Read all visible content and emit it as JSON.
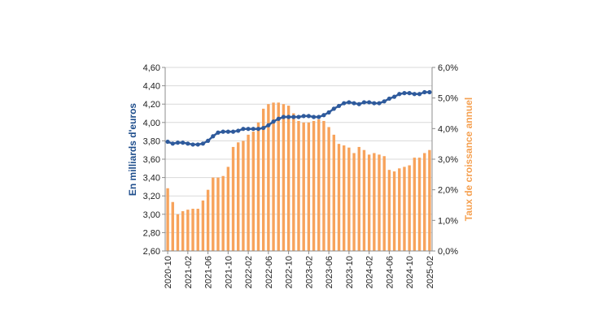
{
  "chart_data": {
    "type": "bar+line",
    "title": "",
    "x_label": "",
    "y_left_label": "En milliards d'euros",
    "y_right_label": "Taux de croissance annuel",
    "y_left_range": [
      2.6,
      4.6
    ],
    "y_right_range": [
      0,
      6
    ],
    "y_left_ticks": [
      "2,60",
      "2,80",
      "3,00",
      "3,20",
      "3,40",
      "3,60",
      "3,80",
      "4,00",
      "4,20",
      "4,40",
      "4,60"
    ],
    "y_right_ticks": [
      "0,0%",
      "1,0%",
      "2,0%",
      "3,0%",
      "4,0%",
      "5,0%",
      "6,0%"
    ],
    "x_ticks": [
      "2020-10",
      "2021-02",
      "2021-06",
      "2021-10",
      "2022-02",
      "2022-06",
      "2022-10",
      "2023-02",
      "2023-06",
      "2023-10",
      "2024-02",
      "2024-06",
      "2024-10",
      "2025-02"
    ],
    "grid": true,
    "colors": {
      "line": "#2e5a9c",
      "bars": "#f7a35c",
      "axis": "#8c8c8c",
      "grid": "#d9d9d9",
      "left_label": "#1f4e8c",
      "right_label": "#f5a050"
    },
    "months": [
      "2020-10",
      "2020-11",
      "2020-12",
      "2021-01",
      "2021-02",
      "2021-03",
      "2021-04",
      "2021-05",
      "2021-06",
      "2021-07",
      "2021-08",
      "2021-09",
      "2021-10",
      "2021-11",
      "2021-12",
      "2022-01",
      "2022-02",
      "2022-03",
      "2022-04",
      "2022-05",
      "2022-06",
      "2022-07",
      "2022-08",
      "2022-09",
      "2022-10",
      "2022-11",
      "2022-12",
      "2023-01",
      "2023-02",
      "2023-03",
      "2023-04",
      "2023-05",
      "2023-06",
      "2023-07",
      "2023-08",
      "2023-09",
      "2023-10",
      "2023-11",
      "2023-12",
      "2024-01",
      "2024-02",
      "2024-03",
      "2024-04",
      "2024-05",
      "2024-06",
      "2024-07",
      "2024-08",
      "2024-09",
      "2024-10",
      "2024-11",
      "2024-12",
      "2025-01",
      "2025-02"
    ],
    "series": [
      {
        "axis": "left",
        "type": "line",
        "values": [
          3.79,
          3.77,
          3.78,
          3.78,
          3.77,
          3.76,
          3.76,
          3.77,
          3.8,
          3.85,
          3.89,
          3.9,
          3.9,
          3.9,
          3.91,
          3.93,
          3.93,
          3.93,
          3.93,
          3.94,
          3.97,
          4.01,
          4.04,
          4.06,
          4.06,
          4.06,
          4.06,
          4.07,
          4.07,
          4.06,
          4.06,
          4.08,
          4.11,
          4.15,
          4.18,
          4.21,
          4.22,
          4.21,
          4.2,
          4.22,
          4.22,
          4.21,
          4.21,
          4.23,
          4.26,
          4.28,
          4.31,
          4.32,
          4.32,
          4.31,
          4.31,
          4.33,
          4.33
        ]
      },
      {
        "axis": "right",
        "type": "bar",
        "values": [
          2.05,
          1.6,
          1.2,
          1.3,
          1.35,
          1.38,
          1.38,
          1.65,
          2.0,
          2.4,
          2.4,
          2.45,
          2.75,
          3.4,
          3.55,
          3.6,
          3.8,
          3.9,
          4.2,
          4.65,
          4.8,
          4.85,
          4.85,
          4.8,
          4.75,
          4.5,
          4.25,
          4.2,
          4.2,
          4.25,
          4.3,
          4.25,
          4.05,
          3.8,
          3.5,
          3.45,
          3.38,
          3.2,
          3.4,
          3.3,
          3.15,
          3.2,
          3.15,
          3.1,
          2.65,
          2.6,
          2.7,
          2.75,
          2.8,
          3.05,
          3.05,
          3.2,
          3.3
        ]
      }
    ]
  }
}
